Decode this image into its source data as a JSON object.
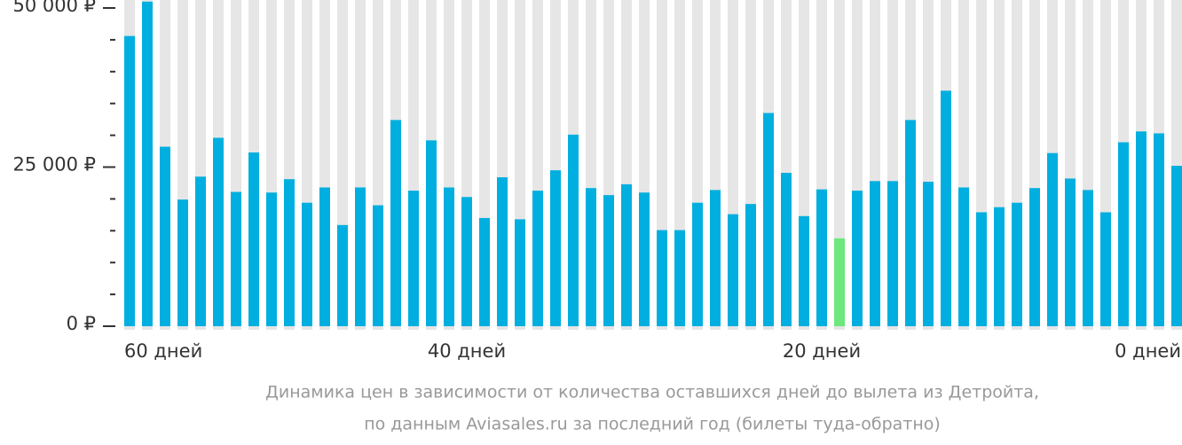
{
  "chart_data": {
    "type": "bar",
    "caption": [
      "Динамика цен в зависимости от количества оставшихся дней до вылета из Детройта,",
      "по данным Aviasales.ru за последний год (билеты туда-обратно)"
    ],
    "categories": [
      "60 дней",
      null,
      null,
      null,
      null,
      null,
      null,
      null,
      null,
      null,
      null,
      null,
      null,
      null,
      null,
      null,
      null,
      null,
      null,
      null,
      "40 дней",
      null,
      null,
      null,
      null,
      null,
      null,
      null,
      null,
      null,
      null,
      null,
      null,
      null,
      null,
      null,
      null,
      null,
      null,
      null,
      "20 дней",
      null,
      null,
      null,
      null,
      null,
      null,
      null,
      null,
      null,
      null,
      null,
      null,
      null,
      null,
      null,
      null,
      null,
      null,
      "0 дней"
    ],
    "values": [
      45600,
      51000,
      28200,
      19900,
      23500,
      29600,
      21100,
      27300,
      21000,
      23100,
      19400,
      21800,
      15900,
      21800,
      19000,
      32400,
      21300,
      29200,
      21800,
      20300,
      17000,
      23400,
      16800,
      21300,
      24500,
      30100,
      21700,
      20600,
      22300,
      21000,
      15100,
      15100,
      19400,
      21400,
      17600,
      19200,
      33500,
      24100,
      17300,
      21500,
      13800,
      21300,
      22800,
      22800,
      32400,
      22700,
      37000,
      21800,
      17900,
      18700,
      19400,
      21700,
      27200,
      23200,
      21400,
      17900,
      28900,
      30600,
      30300,
      25200
    ],
    "color": "#00afdf",
    "highlight": {
      "index": 40,
      "color": "#6ce87c"
    },
    "stripe_color": "#e6e6e6",
    "ylim": [
      0,
      50000
    ],
    "yticks": [
      {
        "value": 0,
        "label": "0 ₽"
      },
      {
        "value": 25000,
        "label": "25 000 ₽"
      },
      {
        "value": 50000,
        "label": "50 000 ₽"
      }
    ],
    "minor_yticks": [
      5000,
      10000,
      15000,
      20000,
      30000,
      35000,
      40000,
      45000
    ]
  }
}
